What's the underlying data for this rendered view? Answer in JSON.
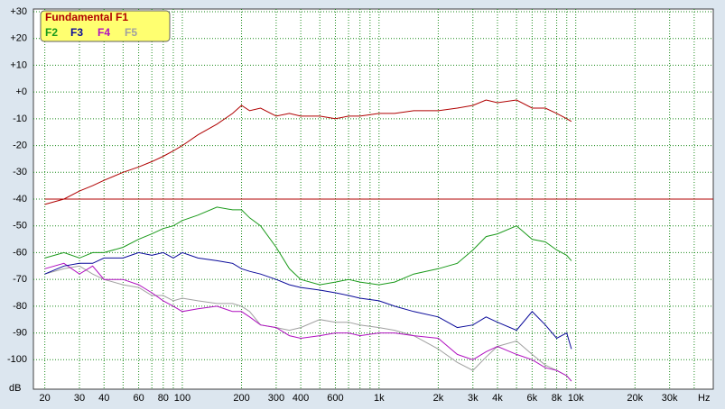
{
  "chart_data": {
    "type": "line",
    "x_unit": "Hz",
    "y_unit": "dB",
    "xscale": "log",
    "grid": true,
    "xlim": [
      17.5,
      50000
    ],
    "ylim": [
      -111,
      31
    ],
    "xticks": [
      20,
      30,
      40,
      60,
      80,
      100,
      200,
      300,
      400,
      600,
      {
        "value": 1000,
        "label": "1k"
      },
      {
        "value": 2000,
        "label": "2k"
      },
      {
        "value": 3000,
        "label": "3k"
      },
      {
        "value": 4000,
        "label": "4k"
      },
      {
        "value": 6000,
        "label": "6k"
      },
      {
        "value": 8000,
        "label": "8k"
      },
      {
        "value": 10000,
        "label": "10k"
      },
      {
        "value": 20000,
        "label": "20k"
      },
      {
        "value": 30000,
        "label": "30k"
      }
    ],
    "xgrid_minor": [
      50,
      70,
      90,
      500,
      700,
      800,
      900,
      5000,
      7000,
      9000,
      40000
    ],
    "yticks": [
      {
        "value": 30,
        "label": "+30"
      },
      {
        "value": 20,
        "label": "+20"
      },
      {
        "value": 10,
        "label": "+10"
      },
      {
        "value": 0,
        "label": "+0"
      },
      -10,
      -20,
      -30,
      -40,
      -50,
      -60,
      -70,
      -80,
      -90,
      -100
    ],
    "reference_level": -40,
    "x": [
      20,
      25,
      30,
      35,
      40,
      50,
      60,
      70,
      80,
      90,
      100,
      120,
      150,
      180,
      200,
      220,
      250,
      300,
      350,
      400,
      500,
      600,
      700,
      800,
      1000,
      1200,
      1500,
      2000,
      2500,
      3000,
      3500,
      4000,
      5000,
      6000,
      7000,
      8000,
      9000,
      9500
    ],
    "series": [
      {
        "name": "Fundamental F1",
        "color": "#b00000",
        "values": [
          -42,
          -40,
          -37,
          -35,
          -33,
          -30,
          -28,
          -26,
          -24,
          -22,
          -20,
          -16,
          -12,
          -8,
          -5,
          -7,
          -6,
          -9,
          -8,
          -9,
          -9,
          -10,
          -9,
          -9,
          -8,
          -8,
          -7,
          -7,
          -6,
          -5,
          -3,
          -4,
          -3,
          -6,
          -6,
          -8,
          -10,
          -11
        ]
      },
      {
        "name": "F2",
        "color": "#1a9a1a",
        "values": [
          -62,
          -60,
          -62,
          -60,
          -60,
          -58,
          -55,
          -53,
          -51,
          -50,
          -48,
          -46,
          -43,
          -44,
          -44,
          -47,
          -50,
          -58,
          -66,
          -70,
          -72,
          -71,
          -70,
          -71,
          -72,
          -71,
          -68,
          -66,
          -64,
          -59,
          -54,
          -53,
          -50,
          -55,
          -56,
          -59,
          -61,
          -63
        ]
      },
      {
        "name": "F3",
        "color": "#0a0a9a",
        "values": [
          -68,
          -65,
          -64,
          -64,
          -62,
          -62,
          -60,
          -61,
          -60,
          -62,
          -60,
          -62,
          -63,
          -64,
          -66,
          -67,
          -68,
          -70,
          -72,
          -73,
          -74,
          -75,
          -76,
          -77,
          -78,
          -80,
          -82,
          -84,
          -88,
          -87,
          -84,
          -86,
          -89,
          -82,
          -87,
          -92,
          -90,
          -96
        ]
      },
      {
        "name": "F4",
        "color": "#b010c0",
        "values": [
          -66,
          -64,
          -68,
          -65,
          -70,
          -70,
          -72,
          -75,
          -78,
          -80,
          -82,
          -81,
          -80,
          -82,
          -82,
          -84,
          -87,
          -88,
          -91,
          -92,
          -91,
          -90,
          -90,
          -91,
          -90,
          -90,
          -91,
          -92,
          -98,
          -100,
          -97,
          -95,
          -98,
          -100,
          -103,
          -104,
          -106,
          -108
        ]
      },
      {
        "name": "F5",
        "color": "#a0a0a0",
        "values": [
          -68,
          -66,
          -65,
          -68,
          -70,
          -72,
          -73,
          -76,
          -76,
          -78,
          -77,
          -78,
          -79,
          -79,
          -80,
          -82,
          -87,
          -88,
          -89,
          -88,
          -85,
          -86,
          -86,
          -87,
          -88,
          -89,
          -91,
          -96,
          -101,
          -104,
          -99,
          -95,
          -93,
          -98,
          -102,
          -104,
          -106,
          -108
        ]
      }
    ]
  }
}
